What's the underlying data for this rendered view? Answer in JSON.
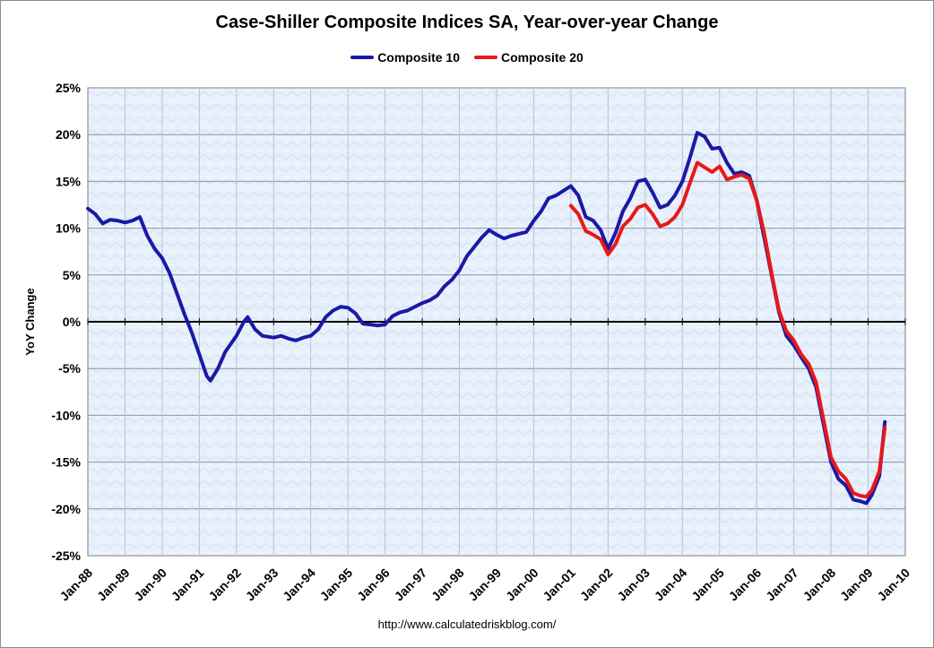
{
  "chart_data": {
    "type": "line",
    "title": "Case-Shiller Composite Indices SA, Year-over-year Change",
    "ylabel": "YoY Change",
    "xlabel": "",
    "ylim": [
      -25,
      25
    ],
    "xlim": [
      1988.0,
      2010.0
    ],
    "y_tick_labels": [
      "25%",
      "20%",
      "15%",
      "10%",
      "5%",
      "0%",
      "-5%",
      "-10%",
      "-15%",
      "-20%",
      "-25%"
    ],
    "x_tick_labels": [
      "Jan-88",
      "Jan-89",
      "Jan-90",
      "Jan-91",
      "Jan-92",
      "Jan-93",
      "Jan-94",
      "Jan-95",
      "Jan-96",
      "Jan-97",
      "Jan-98",
      "Jan-99",
      "Jan-00",
      "Jan-01",
      "Jan-02",
      "Jan-03",
      "Jan-04",
      "Jan-05",
      "Jan-06",
      "Jan-07",
      "Jan-08",
      "Jan-09",
      "Jan-10"
    ],
    "legend_position": "top-center",
    "series": [
      {
        "name": "Composite 10",
        "color": "#1a1aa6",
        "points": [
          [
            1988.0,
            12.1
          ],
          [
            1988.2,
            11.5
          ],
          [
            1988.4,
            10.5
          ],
          [
            1988.6,
            10.9
          ],
          [
            1988.8,
            10.8
          ],
          [
            1989.0,
            10.6
          ],
          [
            1989.2,
            10.8
          ],
          [
            1989.4,
            11.2
          ],
          [
            1989.6,
            9.2
          ],
          [
            1989.8,
            7.8
          ],
          [
            1990.0,
            6.8
          ],
          [
            1990.2,
            5.2
          ],
          [
            1990.4,
            3.0
          ],
          [
            1990.6,
            0.8
          ],
          [
            1990.8,
            -1.2
          ],
          [
            1991.0,
            -3.5
          ],
          [
            1991.2,
            -5.8
          ],
          [
            1991.3,
            -6.3
          ],
          [
            1991.5,
            -5.0
          ],
          [
            1991.7,
            -3.2
          ],
          [
            1992.0,
            -1.5
          ],
          [
            1992.2,
            0.0
          ],
          [
            1992.3,
            0.5
          ],
          [
            1992.5,
            -0.8
          ],
          [
            1992.7,
            -1.5
          ],
          [
            1993.0,
            -1.7
          ],
          [
            1993.2,
            -1.5
          ],
          [
            1993.4,
            -1.8
          ],
          [
            1993.6,
            -2.0
          ],
          [
            1993.8,
            -1.7
          ],
          [
            1994.0,
            -1.5
          ],
          [
            1994.2,
            -0.8
          ],
          [
            1994.4,
            0.5
          ],
          [
            1994.6,
            1.2
          ],
          [
            1994.8,
            1.6
          ],
          [
            1995.0,
            1.5
          ],
          [
            1995.2,
            0.9
          ],
          [
            1995.4,
            -0.2
          ],
          [
            1995.6,
            -0.3
          ],
          [
            1995.8,
            -0.4
          ],
          [
            1996.0,
            -0.3
          ],
          [
            1996.2,
            0.6
          ],
          [
            1996.4,
            1.0
          ],
          [
            1996.6,
            1.2
          ],
          [
            1996.8,
            1.6
          ],
          [
            1997.0,
            2.0
          ],
          [
            1997.2,
            2.3
          ],
          [
            1997.4,
            2.8
          ],
          [
            1997.6,
            3.8
          ],
          [
            1997.8,
            4.5
          ],
          [
            1998.0,
            5.5
          ],
          [
            1998.2,
            7.0
          ],
          [
            1998.4,
            8.0
          ],
          [
            1998.6,
            9.0
          ],
          [
            1998.8,
            9.8
          ],
          [
            1999.0,
            9.3
          ],
          [
            1999.2,
            8.9
          ],
          [
            1999.4,
            9.2
          ],
          [
            1999.6,
            9.4
          ],
          [
            1999.8,
            9.6
          ],
          [
            2000.0,
            10.8
          ],
          [
            2000.2,
            11.8
          ],
          [
            2000.4,
            13.2
          ],
          [
            2000.6,
            13.5
          ],
          [
            2000.8,
            14.0
          ],
          [
            2001.0,
            14.5
          ],
          [
            2001.2,
            13.5
          ],
          [
            2001.4,
            11.2
          ],
          [
            2001.6,
            10.8
          ],
          [
            2001.8,
            9.8
          ],
          [
            2002.0,
            7.8
          ],
          [
            2002.2,
            9.5
          ],
          [
            2002.4,
            11.8
          ],
          [
            2002.6,
            13.2
          ],
          [
            2002.8,
            15.0
          ],
          [
            2003.0,
            15.2
          ],
          [
            2003.2,
            13.8
          ],
          [
            2003.4,
            12.2
          ],
          [
            2003.6,
            12.5
          ],
          [
            2003.8,
            13.5
          ],
          [
            2004.0,
            15.0
          ],
          [
            2004.2,
            17.5
          ],
          [
            2004.4,
            20.2
          ],
          [
            2004.6,
            19.8
          ],
          [
            2004.8,
            18.5
          ],
          [
            2005.0,
            18.6
          ],
          [
            2005.2,
            17.0
          ],
          [
            2005.4,
            15.8
          ],
          [
            2005.6,
            16.0
          ],
          [
            2005.8,
            15.6
          ],
          [
            2006.0,
            13.0
          ],
          [
            2006.2,
            9.0
          ],
          [
            2006.4,
            5.0
          ],
          [
            2006.6,
            1.0
          ],
          [
            2006.8,
            -1.5
          ],
          [
            2007.0,
            -2.5
          ],
          [
            2007.2,
            -3.8
          ],
          [
            2007.4,
            -5.0
          ],
          [
            2007.6,
            -7.0
          ],
          [
            2007.8,
            -11.0
          ],
          [
            2008.0,
            -15.0
          ],
          [
            2008.2,
            -16.8
          ],
          [
            2008.4,
            -17.5
          ],
          [
            2008.6,
            -19.0
          ],
          [
            2008.8,
            -19.2
          ],
          [
            2008.95,
            -19.4
          ],
          [
            2009.1,
            -18.5
          ],
          [
            2009.3,
            -16.5
          ],
          [
            2009.45,
            -10.7
          ]
        ]
      },
      {
        "name": "Composite 20",
        "color": "#e81818",
        "points": [
          [
            2001.0,
            12.4
          ],
          [
            2001.2,
            11.5
          ],
          [
            2001.4,
            9.7
          ],
          [
            2001.6,
            9.3
          ],
          [
            2001.8,
            8.8
          ],
          [
            2002.0,
            7.2
          ],
          [
            2002.2,
            8.3
          ],
          [
            2002.4,
            10.2
          ],
          [
            2002.6,
            11.0
          ],
          [
            2002.8,
            12.2
          ],
          [
            2003.0,
            12.5
          ],
          [
            2003.2,
            11.5
          ],
          [
            2003.4,
            10.2
          ],
          [
            2003.6,
            10.5
          ],
          [
            2003.8,
            11.2
          ],
          [
            2004.0,
            12.5
          ],
          [
            2004.2,
            14.8
          ],
          [
            2004.4,
            17.0
          ],
          [
            2004.6,
            16.5
          ],
          [
            2004.8,
            16.0
          ],
          [
            2005.0,
            16.6
          ],
          [
            2005.2,
            15.2
          ],
          [
            2005.4,
            15.5
          ],
          [
            2005.6,
            15.7
          ],
          [
            2005.8,
            15.3
          ],
          [
            2006.0,
            13.0
          ],
          [
            2006.2,
            9.5
          ],
          [
            2006.4,
            5.2
          ],
          [
            2006.6,
            1.2
          ],
          [
            2006.8,
            -1.0
          ],
          [
            2007.0,
            -2.0
          ],
          [
            2007.2,
            -3.5
          ],
          [
            2007.4,
            -4.5
          ],
          [
            2007.6,
            -6.5
          ],
          [
            2007.8,
            -10.5
          ],
          [
            2008.0,
            -14.5
          ],
          [
            2008.2,
            -16.0
          ],
          [
            2008.4,
            -16.8
          ],
          [
            2008.6,
            -18.3
          ],
          [
            2008.8,
            -18.6
          ],
          [
            2008.95,
            -18.7
          ],
          [
            2009.1,
            -18.0
          ],
          [
            2009.3,
            -16.0
          ],
          [
            2009.45,
            -11.3
          ]
        ]
      }
    ]
  },
  "source_url": "http://www.calculatedriskblog.com/"
}
